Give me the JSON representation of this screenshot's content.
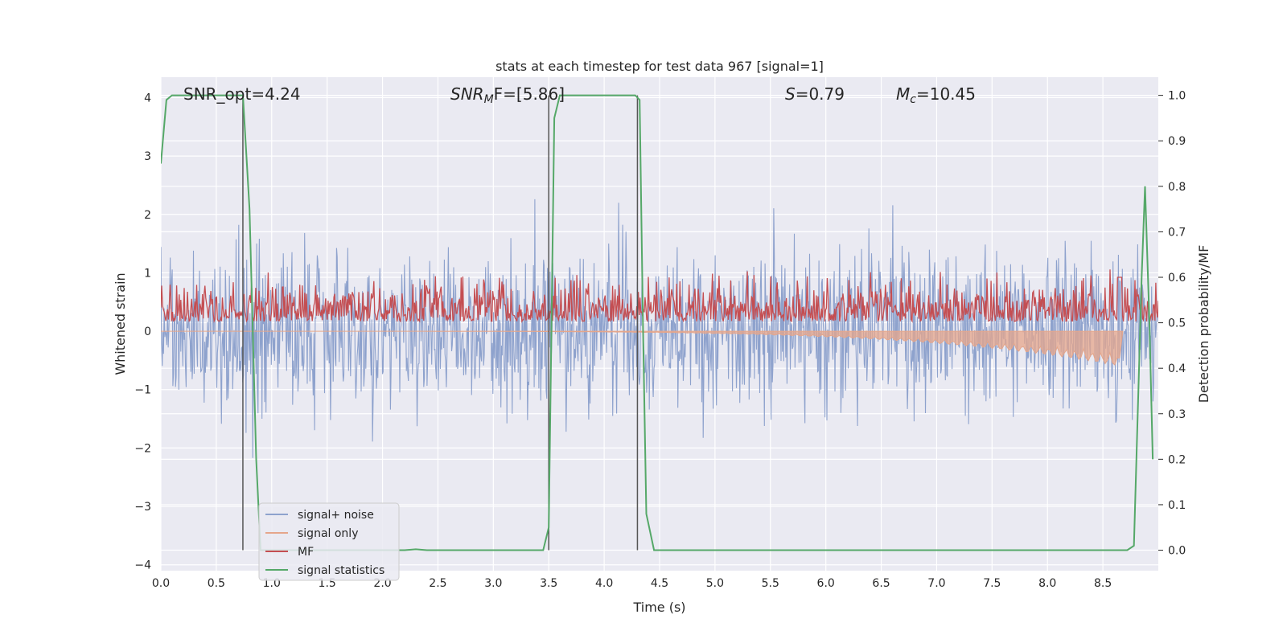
{
  "chart_data": {
    "type": "line",
    "title": "stats at each timestep for test data 967 [signal=1]",
    "xlabel": "Time (s)",
    "ylabel": "Whitened strain",
    "y2label": "Detection probability/MF",
    "xlim": [
      0,
      9
    ],
    "ylim": [
      -4.1,
      4.35
    ],
    "y2lim": [
      -0.045,
      1.04
    ],
    "grid": true,
    "legend_position": "lower-left",
    "x_ticks": [
      "0.0",
      "0.5",
      "1.0",
      "1.5",
      "2.0",
      "2.5",
      "3.0",
      "3.5",
      "4.0",
      "4.5",
      "5.0",
      "5.5",
      "6.0",
      "6.5",
      "7.0",
      "7.5",
      "8.0",
      "8.5"
    ],
    "y_ticks": [
      "4",
      "3",
      "2",
      "1",
      "0",
      "−1",
      "−2",
      "−3",
      "−4"
    ],
    "y2_ticks": [
      "1.0",
      "0.9",
      "0.8",
      "0.7",
      "0.6",
      "0.5",
      "0.4",
      "0.3",
      "0.2",
      "0.1",
      "0.0"
    ],
    "annotations": {
      "snr_opt": "SNR_opt=4.24",
      "snr_mf_prefix": "SNR",
      "snr_mf_sub": "M",
      "snr_mf_suffix": "F=[5.86]",
      "s_label": "S",
      "s_value": "=0.79",
      "mc_label": "M",
      "mc_sub": "c",
      "mc_value": "=10.45"
    },
    "vertical_markers_x": [
      0.74,
      3.5,
      4.3
    ],
    "series": [
      {
        "name": "signal+ noise",
        "color": "#8ea2cd",
        "kind": "noise",
        "amplitude_range": [
          -3.7,
          3.7
        ]
      },
      {
        "name": "signal only",
        "color": "#e5a68b",
        "kind": "chirp",
        "max_amplitude": -0.6,
        "merger_time": 8.65
      },
      {
        "name": "MF",
        "color": "#c44e52",
        "kind": "mf",
        "y2_range": [
          0.49,
          0.62
        ],
        "peak": 0.6
      },
      {
        "name": "signal statistics",
        "color": "#55a868",
        "kind": "line",
        "points": [
          [
            0.0,
            0.85
          ],
          [
            0.05,
            0.99
          ],
          [
            0.1,
            1.0
          ],
          [
            0.72,
            1.0
          ],
          [
            0.74,
            1.0
          ],
          [
            0.8,
            0.75
          ],
          [
            0.86,
            0.2
          ],
          [
            0.9,
            0.0
          ],
          [
            2.2,
            0.0
          ],
          [
            2.3,
            0.002
          ],
          [
            2.4,
            0.0
          ],
          [
            3.45,
            0.0
          ],
          [
            3.5,
            0.05
          ],
          [
            3.55,
            0.95
          ],
          [
            3.6,
            1.0
          ],
          [
            4.28,
            1.0
          ],
          [
            4.32,
            0.99
          ],
          [
            4.35,
            0.5
          ],
          [
            4.38,
            0.08
          ],
          [
            4.45,
            0.0
          ],
          [
            8.72,
            0.0
          ],
          [
            8.78,
            0.01
          ],
          [
            8.85,
            0.6
          ],
          [
            8.88,
            0.8
          ],
          [
            8.92,
            0.5
          ],
          [
            8.95,
            0.2
          ]
        ]
      }
    ]
  }
}
